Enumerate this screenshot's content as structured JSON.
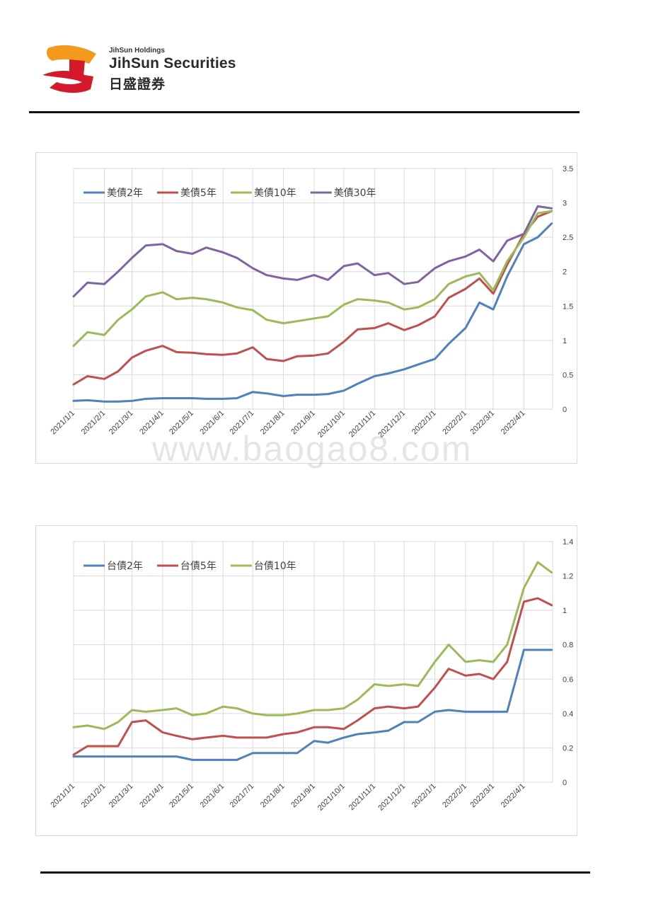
{
  "header": {
    "brand_small": "JihSun Holdings",
    "brand_main": "JihSun Securities",
    "brand_cn": "日盛證券",
    "logo_colors": {
      "orange": "#f39a1e",
      "red": "#d4192b"
    }
  },
  "watermark": "www.baogao8.com",
  "chart_data": [
    {
      "type": "line",
      "title": "",
      "x_ticks": [
        "2021/1/1",
        "2021/2/1",
        "2021/3/1",
        "2021/4/1",
        "2021/5/1",
        "2021/6/1",
        "2021/7/1",
        "2021/8/1",
        "2021/9/1",
        "2021/10/1",
        "2021/11/1",
        "2021/12/1",
        "2022/1/1",
        "2022/2/1",
        "2022/3/1",
        "2022/4/1"
      ],
      "y_ticks": [
        "0",
        "0.5",
        "1",
        "1.5",
        "2",
        "2.5",
        "3",
        "3.5"
      ],
      "ylim": [
        0,
        3.5
      ],
      "y_axis_side": "right",
      "grid": true,
      "legend": "top-left",
      "x": [
        "2021-01-01",
        "2021-01-15",
        "2021-02-01",
        "2021-02-15",
        "2021-03-01",
        "2021-03-15",
        "2021-04-01",
        "2021-04-15",
        "2021-05-01",
        "2021-05-15",
        "2021-06-01",
        "2021-06-15",
        "2021-07-01",
        "2021-07-15",
        "2021-08-01",
        "2021-08-15",
        "2021-09-01",
        "2021-09-15",
        "2021-10-01",
        "2021-10-15",
        "2021-11-01",
        "2021-11-15",
        "2021-12-01",
        "2021-12-15",
        "2022-01-01",
        "2022-01-15",
        "2022-02-01",
        "2022-02-15",
        "2022-03-01",
        "2022-03-15",
        "2022-04-01",
        "2022-04-15",
        "2022-04-29"
      ],
      "series": [
        {
          "name": "美債2年",
          "color": "#4f81bd",
          "values": [
            0.12,
            0.13,
            0.11,
            0.11,
            0.12,
            0.15,
            0.16,
            0.16,
            0.16,
            0.15,
            0.15,
            0.16,
            0.25,
            0.23,
            0.19,
            0.21,
            0.21,
            0.22,
            0.27,
            0.37,
            0.48,
            0.52,
            0.58,
            0.65,
            0.73,
            0.95,
            1.18,
            1.55,
            1.45,
            1.93,
            2.4,
            2.5,
            2.7
          ]
        },
        {
          "name": "美債5年",
          "color": "#c0504d",
          "values": [
            0.36,
            0.48,
            0.44,
            0.55,
            0.75,
            0.85,
            0.92,
            0.83,
            0.82,
            0.8,
            0.79,
            0.81,
            0.9,
            0.73,
            0.7,
            0.77,
            0.78,
            0.81,
            0.98,
            1.16,
            1.18,
            1.25,
            1.15,
            1.22,
            1.35,
            1.62,
            1.75,
            1.9,
            1.68,
            2.1,
            2.55,
            2.8,
            2.88
          ]
        },
        {
          "name": "美債10年",
          "color": "#9bbb59",
          "values": [
            0.92,
            1.12,
            1.08,
            1.3,
            1.45,
            1.64,
            1.7,
            1.6,
            1.62,
            1.6,
            1.55,
            1.48,
            1.44,
            1.3,
            1.25,
            1.28,
            1.32,
            1.35,
            1.52,
            1.6,
            1.58,
            1.55,
            1.45,
            1.48,
            1.6,
            1.82,
            1.93,
            1.98,
            1.73,
            2.15,
            2.5,
            2.85,
            2.88
          ]
        },
        {
          "name": "美債30年",
          "color": "#8064a2",
          "values": [
            1.64,
            1.84,
            1.82,
            2.0,
            2.2,
            2.38,
            2.4,
            2.3,
            2.26,
            2.35,
            2.28,
            2.2,
            2.05,
            1.95,
            1.9,
            1.88,
            1.95,
            1.88,
            2.08,
            2.12,
            1.95,
            1.98,
            1.82,
            1.85,
            2.05,
            2.15,
            2.22,
            2.32,
            2.15,
            2.45,
            2.55,
            2.95,
            2.92
          ]
        }
      ]
    },
    {
      "type": "line",
      "title": "",
      "x_ticks": [
        "2021/1/1",
        "2021/2/1",
        "2021/3/1",
        "2021/4/1",
        "2021/5/1",
        "2021/6/1",
        "2021/7/1",
        "2021/8/1",
        "2021/9/1",
        "2021/10/1",
        "2021/11/1",
        "2021/12/1",
        "2022/1/1",
        "2022/2/1",
        "2022/3/1",
        "2022/4/1"
      ],
      "y_ticks": [
        "0",
        "0.2",
        "0.4",
        "0.6",
        "0.8",
        "1",
        "1.2",
        "1.4"
      ],
      "ylim": [
        0,
        1.4
      ],
      "y_axis_side": "right",
      "grid": true,
      "legend": "top-left",
      "x": [
        "2021-01-01",
        "2021-01-15",
        "2021-02-01",
        "2021-02-15",
        "2021-03-01",
        "2021-03-15",
        "2021-04-01",
        "2021-04-15",
        "2021-05-01",
        "2021-05-15",
        "2021-06-01",
        "2021-06-15",
        "2021-07-01",
        "2021-07-15",
        "2021-08-01",
        "2021-08-15",
        "2021-09-01",
        "2021-09-15",
        "2021-10-01",
        "2021-10-15",
        "2021-11-01",
        "2021-11-15",
        "2021-12-01",
        "2021-12-15",
        "2022-01-01",
        "2022-01-15",
        "2022-02-01",
        "2022-02-15",
        "2022-03-01",
        "2022-03-15",
        "2022-04-01",
        "2022-04-15",
        "2022-04-29"
      ],
      "series": [
        {
          "name": "台債2年",
          "color": "#4f81bd",
          "values": [
            0.15,
            0.15,
            0.15,
            0.15,
            0.15,
            0.15,
            0.15,
            0.15,
            0.13,
            0.13,
            0.13,
            0.13,
            0.17,
            0.17,
            0.17,
            0.17,
            0.24,
            0.23,
            0.26,
            0.28,
            0.29,
            0.3,
            0.35,
            0.35,
            0.41,
            0.42,
            0.41,
            0.41,
            0.41,
            0.41,
            0.77,
            0.77,
            0.77
          ]
        },
        {
          "name": "台債5年",
          "color": "#c0504d",
          "values": [
            0.16,
            0.21,
            0.21,
            0.21,
            0.35,
            0.36,
            0.29,
            0.27,
            0.25,
            0.26,
            0.27,
            0.26,
            0.26,
            0.26,
            0.28,
            0.29,
            0.32,
            0.32,
            0.31,
            0.36,
            0.43,
            0.44,
            0.43,
            0.44,
            0.55,
            0.66,
            0.62,
            0.63,
            0.6,
            0.7,
            1.05,
            1.07,
            1.03
          ]
        },
        {
          "name": "台債10年",
          "color": "#9bbb59",
          "values": [
            0.32,
            0.33,
            0.31,
            0.35,
            0.42,
            0.41,
            0.42,
            0.43,
            0.39,
            0.4,
            0.44,
            0.43,
            0.4,
            0.39,
            0.39,
            0.4,
            0.42,
            0.42,
            0.43,
            0.48,
            0.57,
            0.56,
            0.57,
            0.56,
            0.7,
            0.8,
            0.7,
            0.71,
            0.7,
            0.8,
            1.13,
            1.28,
            1.22
          ]
        }
      ]
    }
  ]
}
